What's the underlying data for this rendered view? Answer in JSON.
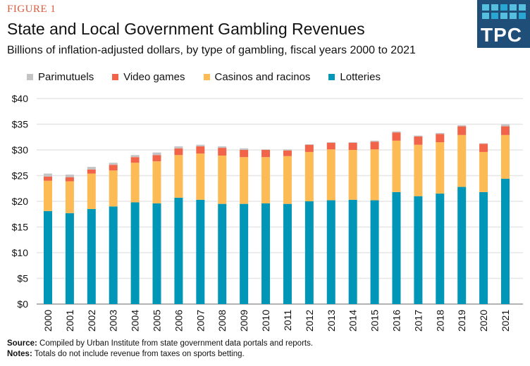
{
  "figure_label": "FIGURE 1",
  "logo": {
    "text": "TPC",
    "bg_color": "#1f4e79"
  },
  "source_label": "Source:",
  "source_text": "Compiled by Urban Institute from state government data portals and reports.",
  "notes_label": "Notes:",
  "notes_text": "Totals do not include revenue from taxes on sports betting.",
  "chart_data": {
    "type": "bar",
    "stacked": true,
    "title": "State and Local Government Gambling Revenues",
    "subtitle": "Billions of inflation-adjusted  dollars, by type of gambling, fiscal years 2000 to 2021",
    "xlabel": "",
    "ylabel": "",
    "ylim": [
      0,
      40
    ],
    "yticks": [
      "$0",
      "$5",
      "$10",
      "$15",
      "$20",
      "$25",
      "$30",
      "$35",
      "$40"
    ],
    "grid": true,
    "legend_position": "top-left",
    "categories": [
      "2000",
      "2001",
      "2002",
      "2003",
      "2004",
      "2005",
      "2006",
      "2007",
      "2008",
      "2009",
      "2010",
      "2011",
      "2012",
      "2013",
      "2014",
      "2015",
      "2016",
      "2017",
      "2018",
      "2019",
      "2020",
      "2021"
    ],
    "series": [
      {
        "name": "Lotteries",
        "color": "#0096b8",
        "values": [
          18.1,
          17.7,
          18.5,
          19.0,
          19.8,
          19.6,
          20.7,
          20.3,
          19.5,
          19.5,
          19.6,
          19.5,
          20.0,
          20.2,
          20.3,
          20.2,
          21.8,
          21.0,
          21.5,
          22.8,
          21.8,
          24.4
        ]
      },
      {
        "name": "Casinos and racinos",
        "color": "#fdbb56",
        "values": [
          5.9,
          6.2,
          6.9,
          7.0,
          7.7,
          8.2,
          8.3,
          9.0,
          9.4,
          9.1,
          9.0,
          9.3,
          9.6,
          9.9,
          9.7,
          9.9,
          10.0,
          10.0,
          10.0,
          10.1,
          7.8,
          8.5
        ]
      },
      {
        "name": "Video games",
        "color": "#f26449",
        "values": [
          0.8,
          0.8,
          0.8,
          1.1,
          1.1,
          1.2,
          1.3,
          1.4,
          1.5,
          1.4,
          1.4,
          1.1,
          1.4,
          1.3,
          1.4,
          1.5,
          1.6,
          1.6,
          1.6,
          1.7,
          1.6,
          1.7
        ]
      },
      {
        "name": "Parimutuels",
        "color": "#c4c4c4",
        "values": [
          0.6,
          0.5,
          0.5,
          0.4,
          0.4,
          0.5,
          0.4,
          0.3,
          0.3,
          0.3,
          0.1,
          0.2,
          0.1,
          0.1,
          0.1,
          0.2,
          0.2,
          0.2,
          0.2,
          0.2,
          0.1,
          0.4
        ]
      }
    ],
    "legend_order": [
      3,
      2,
      1,
      0
    ]
  }
}
